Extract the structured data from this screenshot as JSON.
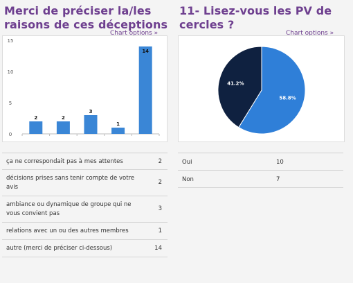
{
  "left": {
    "title_line1": "Merci de préciser la/les",
    "title_line2": "raisons de ces déceptions",
    "chart_options": "Chart options »",
    "rows": [
      {
        "label_line1": "ça ne correspondait pas à mes attentes",
        "label_line2": "",
        "count": "2"
      },
      {
        "label_line1": "décisions prises sans tenir compte de votre",
        "label_line2": "avis",
        "count": "2"
      },
      {
        "label_line1": "ambiance ou dynamique de groupe qui ne",
        "label_line2": "vous convient pas",
        "count": "3"
      },
      {
        "label_line1": "relations avec un ou des autres membres",
        "label_line2": "",
        "count": "1"
      },
      {
        "label_line1": "autre (merci de préciser ci-dessous)",
        "label_line2": "",
        "count": "14"
      }
    ]
  },
  "right": {
    "title_line1": "11- Lisez-vous les PV de",
    "title_line2": "cercles ?",
    "chart_options": "Chart options »",
    "rows": [
      {
        "label": "Oui",
        "count": "10"
      },
      {
        "label": "Non",
        "count": "7"
      }
    ]
  },
  "chart_data": [
    {
      "type": "bar",
      "categories": [
        "ça ne correspondait pas à mes attentes",
        "décisions prises sans tenir compte de votre avis",
        "ambiance ou dynamique de groupe qui ne vous convient pas",
        "relations avec un ou des autres membres",
        "autre (merci de préciser ci-dessous)"
      ],
      "values": [
        2,
        2,
        3,
        1,
        14
      ],
      "data_labels": [
        "2",
        "2",
        "3",
        "1",
        "14"
      ],
      "yticks": [
        "0",
        "5",
        "10",
        "15"
      ],
      "ylim": [
        0,
        15
      ],
      "grid": false,
      "color": "#3a86d6"
    },
    {
      "type": "pie",
      "categories": [
        "Oui",
        "Non"
      ],
      "values": [
        10,
        7
      ],
      "percent_labels": [
        "58.8%",
        "41.2%"
      ],
      "colors": [
        "#2f7fd8",
        "#0f2140"
      ]
    }
  ]
}
